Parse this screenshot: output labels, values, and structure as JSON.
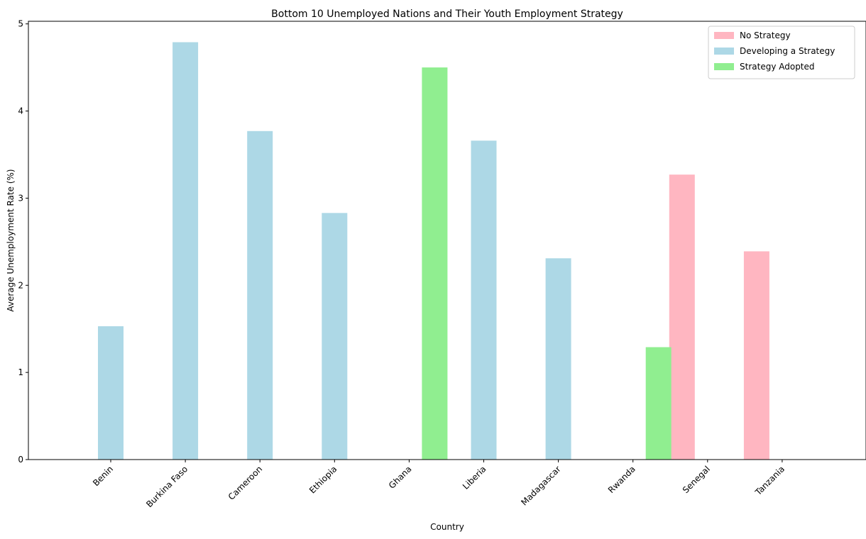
{
  "chart_data": {
    "type": "bar",
    "title": "Bottom 10 Unemployed Nations and Their Youth Employment Strategy",
    "xlabel": "Country",
    "ylabel": "Average Unemployment Rate (%)",
    "ylim": [
      0,
      5.03
    ],
    "yticks": [
      0,
      1,
      2,
      3,
      4,
      5
    ],
    "categories": [
      "Benin",
      "Burkina Faso",
      "Cameroon",
      "Ethiopia",
      "Ghana",
      "Liberia",
      "Madagascar",
      "Rwanda",
      "Senegal",
      "Tanzania"
    ],
    "series": [
      {
        "name": "No Strategy",
        "color": "#ffb6c1",
        "values": [
          null,
          null,
          null,
          null,
          null,
          null,
          null,
          null,
          3.27,
          2.39
        ]
      },
      {
        "name": "Developing a Strategy",
        "color": "#add8e6",
        "values": [
          1.53,
          4.79,
          3.77,
          2.83,
          null,
          3.66,
          2.31,
          null,
          null,
          null
        ]
      },
      {
        "name": "Strategy Adopted",
        "color": "#90ee90",
        "values": [
          null,
          null,
          null,
          null,
          4.5,
          null,
          null,
          1.29,
          null,
          null
        ]
      }
    ],
    "bar_offsets": [
      -1,
      0,
      1
    ],
    "legend": "top-right",
    "grid": false
  }
}
